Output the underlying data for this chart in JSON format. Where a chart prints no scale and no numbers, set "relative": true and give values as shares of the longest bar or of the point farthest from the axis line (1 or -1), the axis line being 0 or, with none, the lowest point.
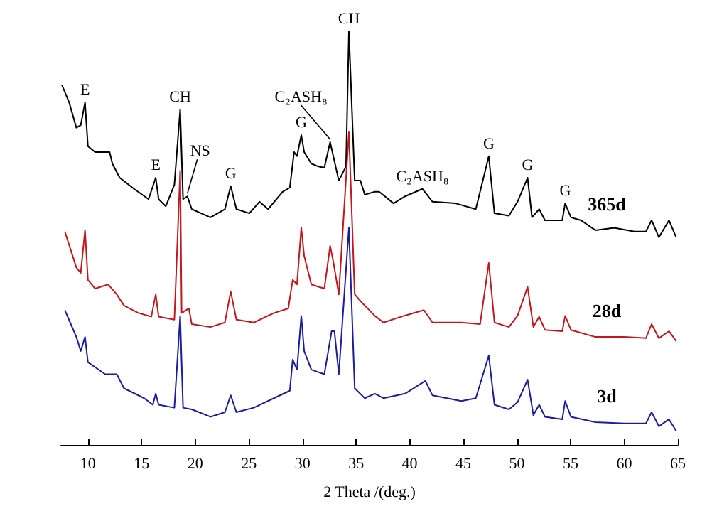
{
  "chart_data": {
    "type": "line",
    "relative": true,
    "xlabel": "2 Theta /(deg.)",
    "xlim": [
      7.5,
      65
    ],
    "xticks": [
      10,
      15,
      20,
      25,
      30,
      35,
      40,
      45,
      50,
      55,
      60,
      65
    ],
    "grid": false,
    "legend": false,
    "marker": "none",
    "line_style": "solid",
    "series": [
      {
        "name": "365d",
        "color": "#000000",
        "x": [
          7.58,
          8.25,
          8.92,
          9.33,
          9.73,
          10.0,
          10.67,
          12.02,
          12.28,
          12.96,
          14.3,
          15.65,
          16.32,
          16.59,
          17.26,
          18.06,
          18.6,
          18.87,
          19.27,
          19.68,
          21.42,
          22.77,
          23.31,
          23.84,
          25.05,
          25.99,
          26.8,
          28.15,
          28.82,
          29.22,
          29.49,
          29.89,
          30.16,
          30.83,
          31.51,
          32.04,
          32.58,
          33.39,
          34.06,
          34.33,
          34.87,
          35.4,
          35.81,
          36.75,
          37.15,
          38.49,
          39.57,
          41.18,
          42.12,
          44.27,
          46.16,
          47.37,
          47.9,
          49.25,
          50.05,
          50.99,
          51.4,
          52.07,
          52.61,
          54.22,
          54.49,
          55.03,
          55.97,
          57.31,
          59.06,
          60.94,
          62.02,
          62.55,
          63.23,
          64.17,
          64.84
        ],
        "values": [
          0.87,
          0.828,
          0.767,
          0.773,
          0.828,
          0.722,
          0.708,
          0.708,
          0.68,
          0.646,
          0.619,
          0.594,
          0.646,
          0.594,
          0.577,
          0.629,
          0.811,
          0.594,
          0.601,
          0.57,
          0.55,
          0.57,
          0.626,
          0.57,
          0.56,
          0.588,
          0.57,
          0.612,
          0.622,
          0.708,
          0.698,
          0.749,
          0.708,
          0.68,
          0.673,
          0.67,
          0.732,
          0.639,
          0.673,
          1.0,
          0.639,
          0.639,
          0.605,
          0.612,
          0.612,
          0.584,
          0.601,
          0.619,
          0.588,
          0.584,
          0.57,
          0.698,
          0.56,
          0.554,
          0.588,
          0.646,
          0.55,
          0.57,
          0.543,
          0.543,
          0.584,
          0.55,
          0.543,
          0.519,
          0.525,
          0.516,
          0.516,
          0.543,
          0.502,
          0.543,
          0.502
        ]
      },
      {
        "name": "28d",
        "color": "#c0181e",
        "x": [
          7.85,
          8.92,
          9.33,
          9.73,
          10.0,
          10.67,
          11.88,
          12.69,
          13.36,
          14.7,
          15.91,
          16.32,
          16.59,
          18.06,
          18.6,
          18.74,
          19.41,
          19.68,
          21.42,
          22.77,
          23.31,
          23.84,
          25.46,
          27.34,
          28.68,
          29.09,
          29.49,
          29.89,
          30.16,
          30.83,
          32.04,
          32.58,
          32.85,
          33.39,
          34.33,
          34.87,
          35.54,
          36.75,
          37.55,
          39.44,
          41.32,
          42.12,
          44.81,
          46.56,
          47.37,
          47.9,
          49.25,
          50.05,
          50.99,
          51.53,
          52.07,
          52.61,
          54.22,
          54.49,
          55.03,
          57.31,
          60.0,
          62.02,
          62.55,
          63.23,
          64.17,
          64.84
        ],
        "values": [
          0.516,
          0.429,
          0.416,
          0.519,
          0.399,
          0.378,
          0.388,
          0.364,
          0.337,
          0.319,
          0.31,
          0.364,
          0.31,
          0.303,
          0.663,
          0.319,
          0.33,
          0.292,
          0.285,
          0.296,
          0.371,
          0.303,
          0.296,
          0.319,
          0.33,
          0.399,
          0.388,
          0.525,
          0.457,
          0.388,
          0.378,
          0.481,
          0.447,
          0.364,
          0.756,
          0.364,
          0.344,
          0.312,
          0.296,
          0.312,
          0.326,
          0.296,
          0.296,
          0.292,
          0.44,
          0.296,
          0.285,
          0.312,
          0.382,
          0.285,
          0.31,
          0.278,
          0.275,
          0.312,
          0.278,
          0.261,
          0.261,
          0.258,
          0.292,
          0.258,
          0.275,
          0.251
        ]
      },
      {
        "name": "3d",
        "color": "#1c1c9c",
        "x": [
          7.85,
          8.92,
          9.33,
          9.73,
          10.0,
          11.61,
          12.69,
          13.36,
          15.24,
          16.05,
          16.32,
          16.59,
          18.06,
          18.6,
          18.87,
          19.68,
          21.42,
          22.77,
          23.31,
          23.84,
          25.46,
          27.34,
          28.82,
          29.09,
          29.49,
          29.89,
          30.16,
          30.83,
          32.04,
          32.72,
          32.98,
          33.39,
          34.33,
          34.87,
          35.81,
          36.75,
          37.55,
          39.57,
          41.45,
          42.12,
          44.81,
          46.16,
          47.37,
          47.9,
          49.25,
          50.05,
          50.99,
          51.53,
          52.07,
          52.61,
          54.22,
          54.49,
          55.03,
          57.31,
          60.0,
          62.02,
          62.55,
          63.23,
          64.17,
          64.84
        ],
        "values": [
          0.326,
          0.261,
          0.227,
          0.261,
          0.2,
          0.171,
          0.171,
          0.137,
          0.113,
          0.097,
          0.124,
          0.097,
          0.09,
          0.312,
          0.09,
          0.086,
          0.068,
          0.079,
          0.12,
          0.079,
          0.09,
          0.113,
          0.131,
          0.206,
          0.182,
          0.312,
          0.227,
          0.182,
          0.171,
          0.275,
          0.275,
          0.171,
          0.525,
          0.137,
          0.113,
          0.124,
          0.113,
          0.124,
          0.155,
          0.12,
          0.106,
          0.113,
          0.216,
          0.097,
          0.086,
          0.103,
          0.158,
          0.072,
          0.097,
          0.068,
          0.062,
          0.106,
          0.068,
          0.055,
          0.052,
          0.052,
          0.079,
          0.045,
          0.062,
          0.034
        ]
      }
    ],
    "annotations": [
      {
        "text": "E",
        "x": 9.73,
        "y": 0.828
      },
      {
        "text": "E",
        "x": 16.32,
        "y": 0.646
      },
      {
        "text": "CH",
        "x": 18.6,
        "y": 0.811
      },
      {
        "text": "NS",
        "x": 19.27,
        "y": 0.601
      },
      {
        "text": "G",
        "x": 23.31,
        "y": 0.626
      },
      {
        "text": "G",
        "x": 29.89,
        "y": 0.749
      },
      {
        "text": "C₂ASH₈",
        "x": 32.58,
        "y": 0.732
      },
      {
        "text": "CH",
        "x": 34.33,
        "y": 1.0
      },
      {
        "text": "C₂ASH₈",
        "x": 41.18,
        "y": 0.619
      },
      {
        "text": "G",
        "x": 47.37,
        "y": 0.698
      },
      {
        "text": "G",
        "x": 50.99,
        "y": 0.646
      },
      {
        "text": "G",
        "x": 54.49,
        "y": 0.584
      }
    ]
  }
}
